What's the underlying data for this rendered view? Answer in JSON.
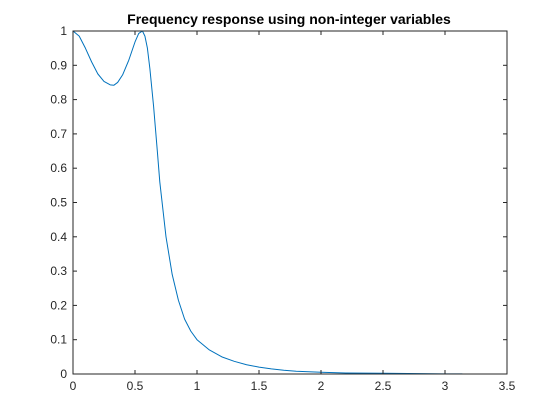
{
  "chart_data": {
    "type": "line",
    "title": "Frequency response using non-integer variables",
    "xlabel": "",
    "ylabel": "",
    "xlim": [
      0,
      3.5
    ],
    "ylim": [
      0,
      1
    ],
    "xticks": [
      "0",
      "0.5",
      "1",
      "1.5",
      "2",
      "2.5",
      "3",
      "3.5"
    ],
    "yticks": [
      "0",
      "0.1",
      "0.2",
      "0.3",
      "0.4",
      "0.5",
      "0.6",
      "0.7",
      "0.8",
      "0.9",
      "1"
    ],
    "grid": false,
    "legend": "none",
    "series": [
      {
        "color": "#0072BD",
        "x": [
          0,
          0.05,
          0.1,
          0.15,
          0.2,
          0.25,
          0.3,
          0.33,
          0.36,
          0.4,
          0.45,
          0.5,
          0.53,
          0.56,
          0.58,
          0.6,
          0.62,
          0.65,
          0.68,
          0.7,
          0.75,
          0.8,
          0.85,
          0.9,
          0.95,
          1.0,
          1.1,
          1.2,
          1.3,
          1.4,
          1.5,
          1.6,
          1.7,
          1.8,
          2.0,
          2.2,
          2.5,
          2.8,
          3.0,
          3.14
        ],
        "y": [
          1.0,
          0.985,
          0.95,
          0.91,
          0.875,
          0.853,
          0.843,
          0.842,
          0.85,
          0.872,
          0.915,
          0.968,
          0.993,
          1.0,
          0.985,
          0.95,
          0.89,
          0.78,
          0.65,
          0.56,
          0.4,
          0.29,
          0.215,
          0.16,
          0.125,
          0.1,
          0.07,
          0.05,
          0.037,
          0.027,
          0.02,
          0.015,
          0.011,
          0.008,
          0.005,
          0.003,
          0.002,
          0.001,
          0.0005,
          0.0003
        ]
      }
    ]
  }
}
